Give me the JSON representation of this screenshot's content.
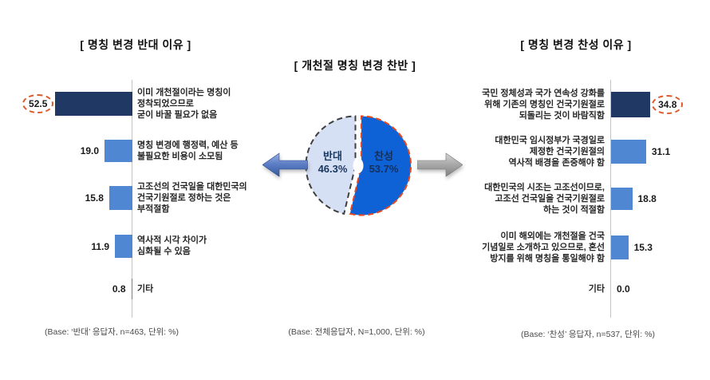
{
  "page": {
    "background": "#ffffff"
  },
  "colors": {
    "bar_dark_navy": "#1F3864",
    "bar_blue": "#4F87D2",
    "pie_favor_fill": "#0F62D6",
    "pie_favor_border": "#E8481E",
    "pie_oppose_fill": "#D6E0F5",
    "pie_oppose_border": "#3F3F3F",
    "highlight_ring": "#DC5A28",
    "axis_line": "#C4C4C4",
    "pie_label_text": "#17375E"
  },
  "chart_data": [
    {
      "type": "bar",
      "orientation": "horizontal",
      "bars_extend": "left",
      "title": "[ 명칭 변경 반대 이유 ]",
      "categories": [
        "이미 개천절이라는 명칭이 정착되었으므로 굳이 바꿀 필요가 없음",
        "명칭 변경에 행정력, 예산 등 불필요한 비용이 소모됨",
        "고조선의 건국일을 대한민국의 건국기원절로 정하는 것은 부적절함",
        "역사적 시각 차이가 심화될 수 있음",
        "기타"
      ],
      "values": [
        52.5,
        19.0,
        15.8,
        11.9,
        0.8
      ],
      "highlight_index": 0,
      "unit": "%",
      "base_note": "(Base: ‘반대’ 응답자, n=463, 단위: %)",
      "rows": [
        {
          "value_label": "52.5",
          "lines": [
            "이미 개천절이라는 명칭이",
            "정착되었으므로",
            "굳이 바꿀 필요가 없음"
          ]
        },
        {
          "value_label": "19.0",
          "lines": [
            "명칭 변경에 행정력, 예산 등",
            "불필요한 비용이 소모됨"
          ]
        },
        {
          "value_label": "15.8",
          "lines": [
            "고조선의 건국일을 대한민국의",
            "건국기원절로 정하는 것은",
            "부적절함"
          ]
        },
        {
          "value_label": "11.9",
          "lines": [
            "역사적 시각 차이가",
            "심화될 수 있음"
          ]
        },
        {
          "value_label": "0.8",
          "lines": [
            "기타"
          ]
        }
      ]
    },
    {
      "type": "pie",
      "title": "[ 개천절 명칭 변경 찬반 ]",
      "base_note": "(Base: 전체응답자, N=1,000, 단위: %)",
      "slices": [
        {
          "label": "찬성",
          "value": 53.7,
          "pct_label": "53.7%",
          "color": "#0F62D6"
        },
        {
          "label": "반대",
          "value": 46.3,
          "pct_label": "46.3%",
          "color": "#D6E0F5"
        }
      ]
    },
    {
      "type": "bar",
      "orientation": "horizontal",
      "bars_extend": "right",
      "title": "[ 명칭 변경 찬성 이유 ]",
      "categories": [
        "국민 정체성과 국가 연속성 강화를 위해 기존의 명칭인 건국기원절로 되돌리는 것이 바람직함",
        "대한민국 임시정부가 국경일로 제정한 건국기원절의 역사적 배경을 존중해야 함",
        "대한민국의 시조는 고조선이므로, 고조선 건국일을 건국기원절로 하는 것이 적절함",
        "이미 해외에는 개천절을 건국 기념일로 소개하고 있으므로, 혼선 방지를 위해 명칭을 통일해야 함",
        "기타"
      ],
      "values": [
        34.8,
        31.1,
        18.8,
        15.3,
        0.0
      ],
      "highlight_index": 0,
      "unit": "%",
      "base_note": "(Base: ‘찬성’ 응답자, n=537, 단위: %)",
      "rows": [
        {
          "value_label": "34.8",
          "lines": [
            "국민 정체성과 국가 연속성 강화를",
            "위해 기존의 명칭인 건국기원절로",
            "되돌리는 것이 바람직함"
          ]
        },
        {
          "value_label": "31.1",
          "lines": [
            "대한민국 임시정부가 국경일로",
            "제정한 건국기원절의",
            "역사적 배경을 존중해야 함"
          ]
        },
        {
          "value_label": "18.8",
          "lines": [
            "대한민국의 시조는 고조선이므로,",
            "고조선 건국일을 건국기원절로",
            "하는 것이 적절함"
          ]
        },
        {
          "value_label": "15.3",
          "lines": [
            "이미 해외에는 개천절을 건국",
            "기념일로 소개하고 있으므로, 혼선",
            "방지를 위해 명칭을 통일해야 함"
          ]
        },
        {
          "value_label": "0.0",
          "lines": [
            "기타"
          ]
        }
      ]
    }
  ]
}
